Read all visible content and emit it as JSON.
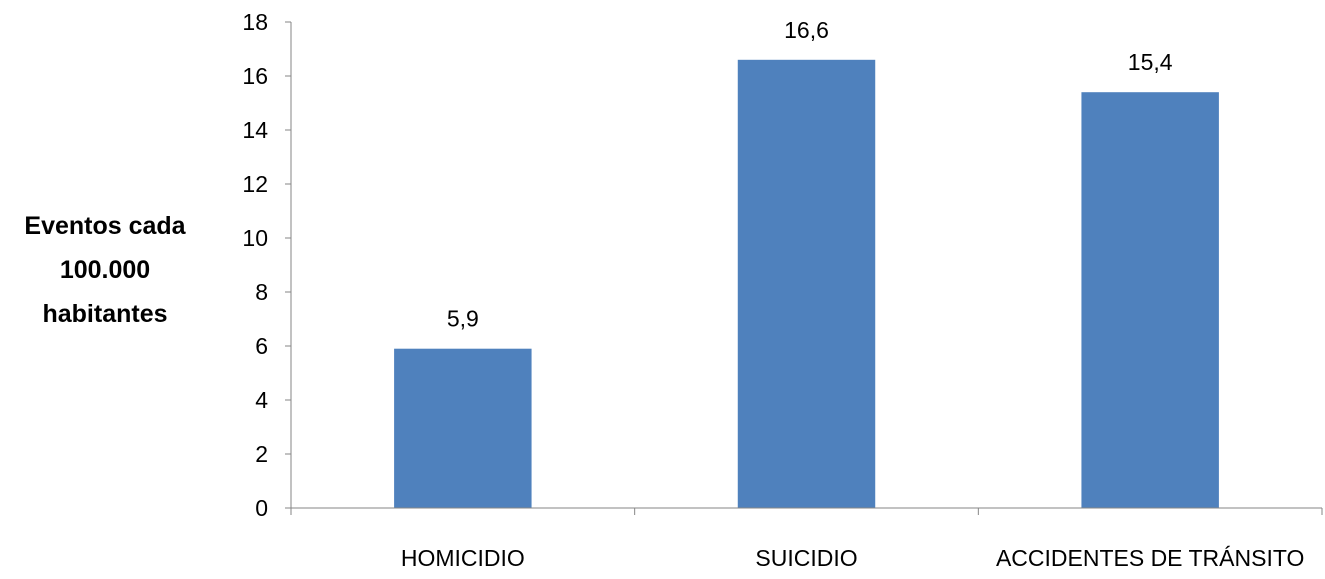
{
  "chart_data": {
    "type": "bar",
    "categories": [
      "HOMICIDIO",
      "SUICIDIO",
      "ACCIDENTES DE TRÁNSITO"
    ],
    "values": [
      5.9,
      16.6,
      15.4
    ],
    "data_labels": [
      "5,9",
      "16,6",
      "15,4"
    ],
    "title": "",
    "xlabel": "",
    "ylabel": [
      "Eventos cada",
      "100.000",
      "habitantes"
    ],
    "ylim": [
      0,
      18
    ],
    "yticks": [
      0,
      2,
      4,
      6,
      8,
      10,
      12,
      14,
      16,
      18
    ],
    "grid": false,
    "legend": "none",
    "bar_color": "#4f81bd"
  }
}
